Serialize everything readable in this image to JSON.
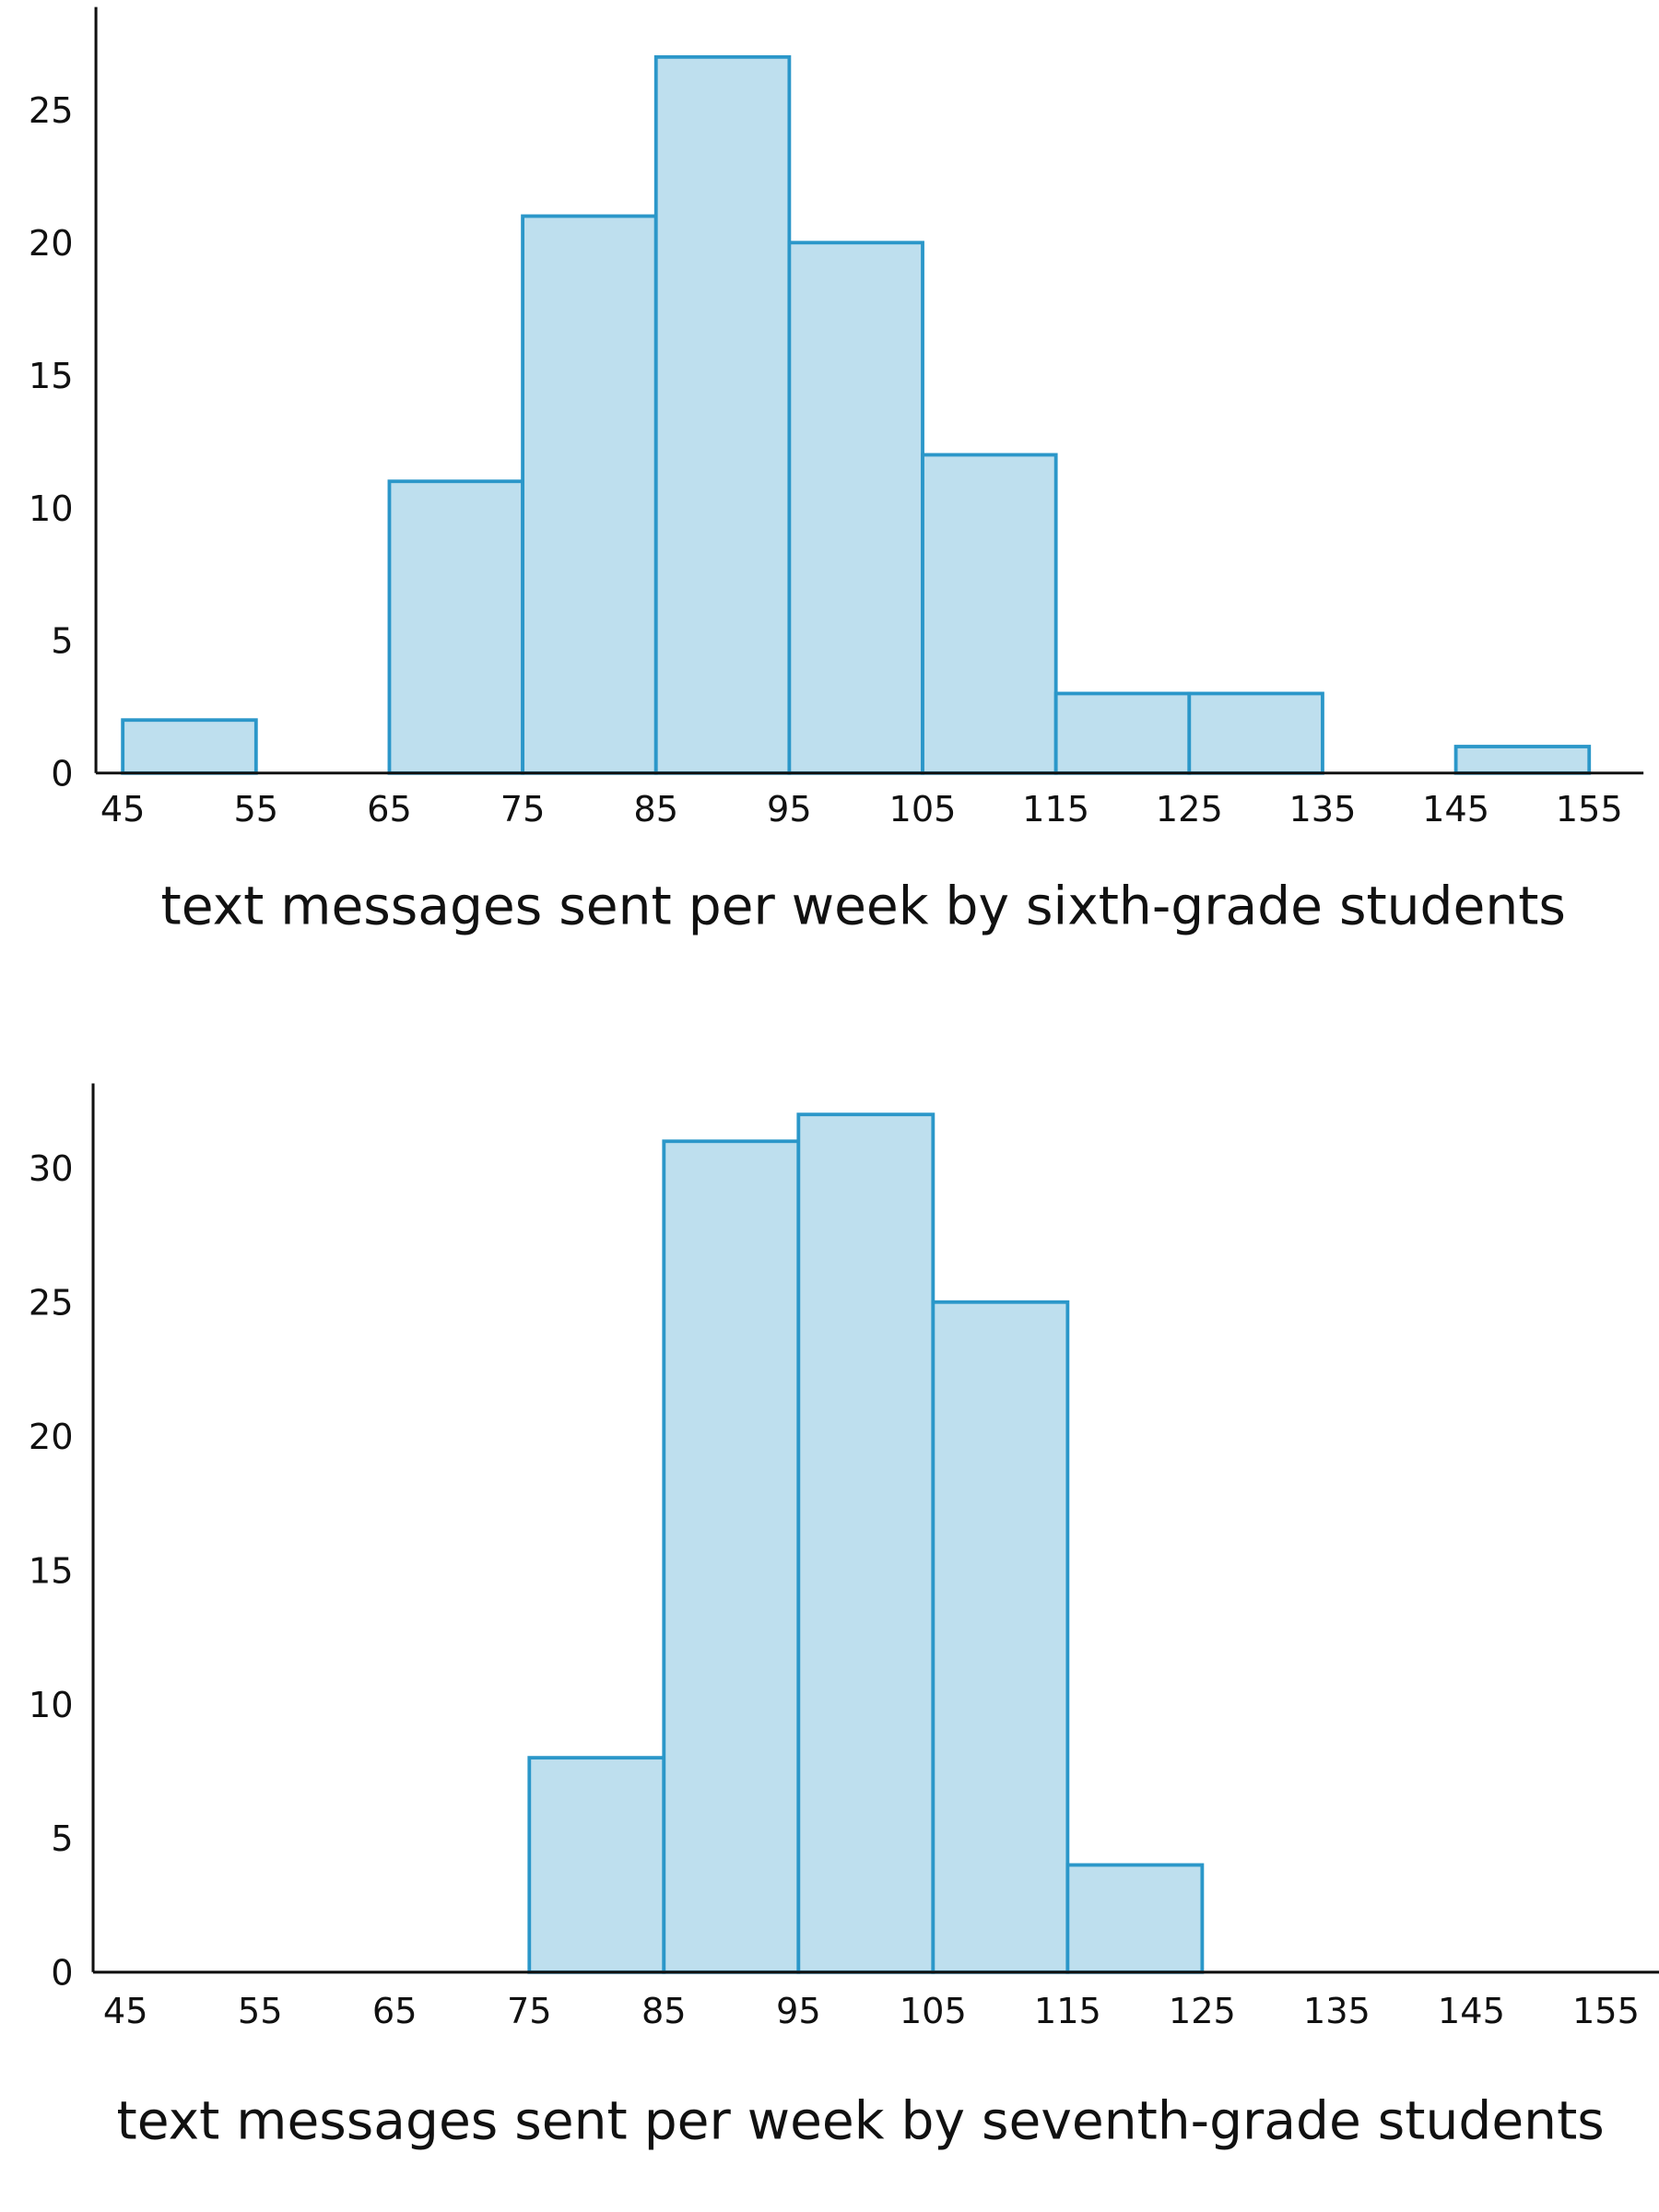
{
  "colors": {
    "bar_fill": "#bedfee",
    "bar_stroke": "#2b97c9",
    "axis": "#111111"
  },
  "chart_data": [
    {
      "type": "bar",
      "subtype": "histogram",
      "xlabel": "text messages sent per week by sixth-grade students",
      "ylabel": "",
      "bin_edges": [
        45,
        55,
        65,
        75,
        85,
        95,
        105,
        115,
        125,
        135,
        145,
        155
      ],
      "values": [
        2,
        0,
        11,
        21,
        27,
        20,
        12,
        3,
        3,
        0,
        1
      ],
      "x_ticks": [
        "45",
        "55",
        "65",
        "75",
        "85",
        "95",
        "105",
        "115",
        "125",
        "135",
        "145",
        "155"
      ],
      "y_ticks": [
        "0",
        "5",
        "10",
        "15",
        "20",
        "25"
      ],
      "xlim": [
        45,
        155
      ],
      "ylim": [
        0,
        28
      ],
      "grid": false
    },
    {
      "type": "bar",
      "subtype": "histogram",
      "xlabel": "text messages sent per week by seventh-grade students",
      "ylabel": "",
      "bin_edges": [
        45,
        55,
        65,
        75,
        85,
        95,
        105,
        115,
        125,
        135,
        145,
        155
      ],
      "values": [
        0,
        0,
        0,
        8,
        31,
        32,
        25,
        4,
        0,
        0,
        0
      ],
      "x_ticks": [
        "45",
        "55",
        "65",
        "75",
        "85",
        "95",
        "105",
        "115",
        "125",
        "135",
        "145",
        "155"
      ],
      "y_ticks": [
        "0",
        "5",
        "10",
        "15",
        "20",
        "25",
        "30"
      ],
      "xlim": [
        45,
        155
      ],
      "ylim": [
        0,
        33
      ],
      "grid": false
    }
  ]
}
